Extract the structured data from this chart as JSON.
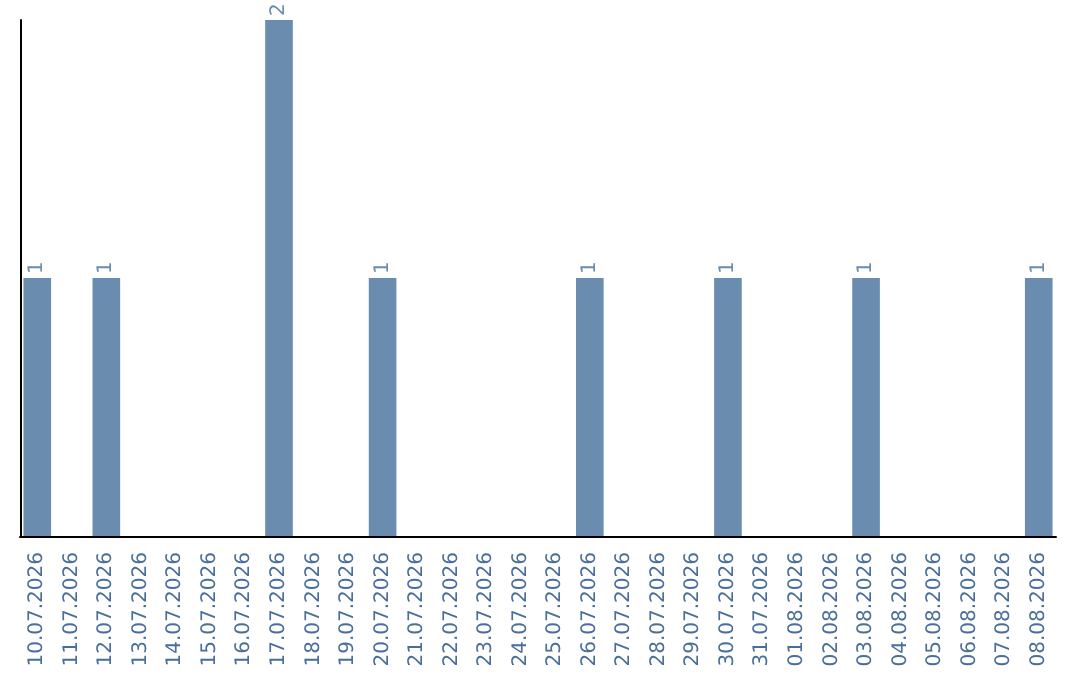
{
  "chart_data": {
    "type": "bar",
    "categories": [
      "10.07.2026",
      "11.07.2026",
      "12.07.2026",
      "13.07.2026",
      "14.07.2026",
      "15.07.2026",
      "16.07.2026",
      "17.07.2026",
      "18.07.2026",
      "19.07.2026",
      "20.07.2026",
      "21.07.2026",
      "22.07.2026",
      "23.07.2026",
      "24.07.2026",
      "25.07.2026",
      "26.07.2026",
      "27.07.2026",
      "28.07.2026",
      "29.07.2026",
      "30.07.2026",
      "31.07.2026",
      "01.08.2026",
      "02.08.2026",
      "03.08.2026",
      "04.08.2026",
      "05.08.2026",
      "06.08.2026",
      "07.08.2026",
      "08.08.2026"
    ],
    "values": [
      1,
      0,
      1,
      0,
      0,
      0,
      0,
      2,
      0,
      0,
      1,
      0,
      0,
      0,
      0,
      0,
      1,
      0,
      0,
      0,
      1,
      0,
      0,
      0,
      1,
      0,
      0,
      0,
      0,
      1
    ],
    "value_labels": [
      "1",
      null,
      "1",
      null,
      null,
      null,
      null,
      "2",
      null,
      null,
      "1",
      null,
      null,
      null,
      null,
      null,
      "1",
      null,
      null,
      null,
      "1",
      null,
      null,
      null,
      "1",
      null,
      null,
      null,
      null,
      "1"
    ],
    "color": "#6a8caf",
    "tick_labels": "x",
    "grid": false
  }
}
